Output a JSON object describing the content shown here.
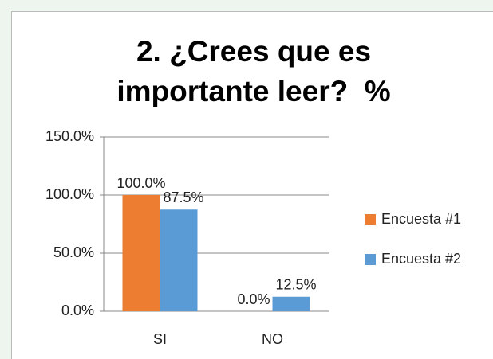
{
  "chart_data": {
    "type": "bar",
    "title": "2. ¿Crees que es importante leer?  %",
    "categories": [
      "SI",
      "NO"
    ],
    "series": [
      {
        "name": "Encuesta #1",
        "color": "#ed7d31",
        "values": [
          100,
          0
        ],
        "value_labels": [
          "100.0%",
          "0.0%"
        ]
      },
      {
        "name": "Encuesta #2",
        "color": "#5b9bd5",
        "values": [
          87.5,
          12.5
        ],
        "value_labels": [
          "87.5%",
          "12.5%"
        ]
      }
    ],
    "ylim": [
      0,
      150
    ],
    "yticks": [
      {
        "value": 0,
        "label": "0.0%"
      },
      {
        "value": 50,
        "label": "50.0%"
      },
      {
        "value": 100,
        "label": "100.0%"
      },
      {
        "value": 150,
        "label": "150.0%"
      }
    ],
    "grid": true,
    "legend": "right"
  }
}
